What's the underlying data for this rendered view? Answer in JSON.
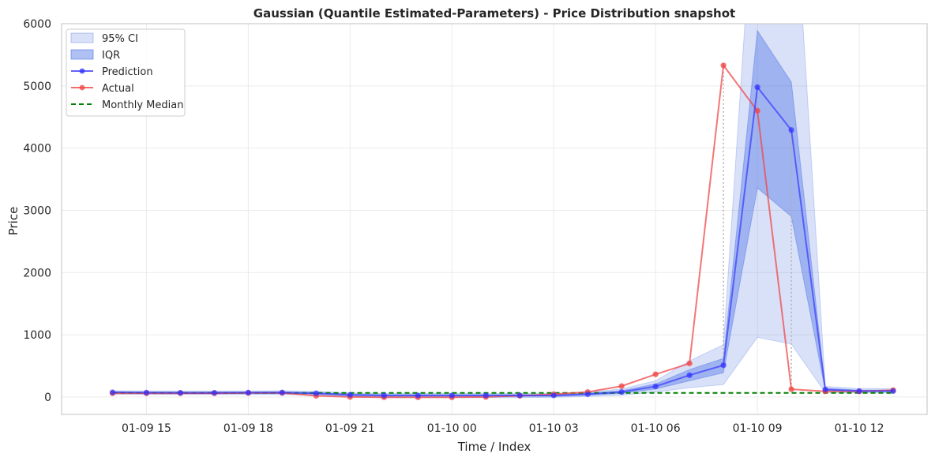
{
  "colors": {
    "ci95": "#4169e1",
    "iqr": "#4169e1",
    "prediction": "#2f2fff",
    "actual": "#f04848",
    "median": "#008000",
    "grid": "#ebebeb",
    "frame": "#cccccc",
    "dotted": "#b0b0b0"
  },
  "chart_data": {
    "type": "line",
    "title": "Gaussian (Quantile Estimated-Parameters) - Price Distribution snapshot",
    "xlabel": "Time / Index",
    "ylabel": "Price",
    "ylim": [
      -280,
      6000
    ],
    "xlim": [
      "01-09 12:30",
      "01-10 14:00"
    ],
    "yticks": [
      0,
      1000,
      2000,
      3000,
      4000,
      5000,
      6000
    ],
    "xticks": [
      {
        "at": "01-09 15:00",
        "label": "01-09 15"
      },
      {
        "at": "01-09 18:00",
        "label": "01-09 18"
      },
      {
        "at": "01-09 21:00",
        "label": "01-09 21"
      },
      {
        "at": "01-10 00:00",
        "label": "01-10 00"
      },
      {
        "at": "01-10 03:00",
        "label": "01-10 03"
      },
      {
        "at": "01-10 06:00",
        "label": "01-10 06"
      },
      {
        "at": "01-10 09:00",
        "label": "01-10 09"
      },
      {
        "at": "01-10 12:00",
        "label": "01-10 12"
      }
    ],
    "grid": true,
    "legend_position": "upper-left",
    "x": [
      "01-09 14:00",
      "01-09 15:00",
      "01-09 16:00",
      "01-09 17:00",
      "01-09 18:00",
      "01-09 19:00",
      "01-09 20:00",
      "01-09 21:00",
      "01-09 22:00",
      "01-09 23:00",
      "01-10 00:00",
      "01-10 01:00",
      "01-10 02:00",
      "01-10 03:00",
      "01-10 04:00",
      "01-10 05:00",
      "01-10 06:00",
      "01-10 07:00",
      "01-10 08:00",
      "01-10 09:00",
      "01-10 10:00",
      "01-10 11:00",
      "01-10 12:00",
      "01-10 13:00"
    ],
    "series": [
      {
        "name": "Prediction",
        "kind": "line-marker",
        "values": [
          75,
          70,
          68,
          68,
          70,
          72,
          60,
          35,
          25,
          25,
          25,
          25,
          25,
          25,
          45,
          80,
          170,
          350,
          510,
          4980,
          4290,
          120,
          95,
          95
        ]
      },
      {
        "name": "Actual",
        "kind": "line-marker",
        "values": [
          60,
          60,
          60,
          60,
          65,
          65,
          20,
          0,
          -5,
          -5,
          -5,
          0,
          20,
          45,
          80,
          175,
          365,
          540,
          5330,
          4600,
          125,
          90,
          90,
          110
        ]
      },
      {
        "name": "Monthly Median",
        "kind": "dashed",
        "values": [
          65,
          65,
          65,
          65,
          65,
          65,
          65,
          65,
          65,
          65,
          65,
          65,
          65,
          65,
          65,
          65,
          65,
          65,
          65,
          65,
          65,
          65,
          65,
          65
        ]
      },
      {
        "name": "IQR",
        "kind": "band",
        "low": [
          60,
          55,
          55,
          55,
          55,
          55,
          45,
          20,
          10,
          10,
          10,
          10,
          10,
          10,
          30,
          60,
          130,
          260,
          390,
          3360,
          2900,
          100,
          85,
          85
        ],
        "high": [
          85,
          80,
          80,
          80,
          80,
          82,
          72,
          48,
          38,
          38,
          38,
          38,
          38,
          38,
          60,
          100,
          210,
          440,
          620,
          5890,
          5060,
          140,
          110,
          110
        ]
      },
      {
        "name": "95% CI",
        "kind": "band",
        "low": [
          45,
          40,
          40,
          40,
          40,
          40,
          30,
          5,
          -10,
          -10,
          -10,
          -10,
          -10,
          -5,
          10,
          30,
          80,
          150,
          200,
          960,
          850,
          70,
          65,
          65
        ],
        "high": [
          100,
          95,
          95,
          95,
          95,
          100,
          90,
          65,
          55,
          55,
          55,
          55,
          55,
          55,
          80,
          130,
          260,
          580,
          840,
          9000,
          9000,
          170,
          135,
          135
        ]
      }
    ],
    "vertical_dotted_links": [
      "01-10 08:00",
      "01-10 10:00"
    ]
  }
}
